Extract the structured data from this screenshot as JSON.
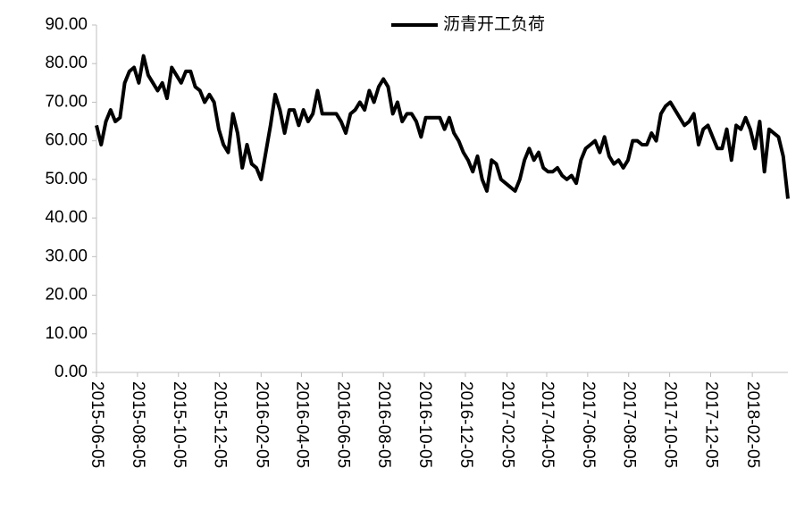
{
  "chart_data": {
    "type": "line",
    "series": [
      {
        "name": "沥青开工负荷",
        "color": "#000000",
        "x": [
          "2015-06-05",
          "2015-06-12",
          "2015-06-19",
          "2015-06-26",
          "2015-07-03",
          "2015-07-10",
          "2015-07-17",
          "2015-07-24",
          "2015-07-31",
          "2015-08-07",
          "2015-08-14",
          "2015-08-21",
          "2015-08-28",
          "2015-09-04",
          "2015-09-11",
          "2015-09-18",
          "2015-09-25",
          "2015-10-02",
          "2015-10-09",
          "2015-10-16",
          "2015-10-23",
          "2015-10-30",
          "2015-11-06",
          "2015-11-13",
          "2015-11-20",
          "2015-11-27",
          "2015-12-04",
          "2015-12-11",
          "2015-12-18",
          "2015-12-25",
          "2016-01-01",
          "2016-01-08",
          "2016-01-15",
          "2016-01-22",
          "2016-01-29",
          "2016-02-05",
          "2016-02-12",
          "2016-02-19",
          "2016-02-26",
          "2016-03-04",
          "2016-03-11",
          "2016-03-18",
          "2016-03-25",
          "2016-04-01",
          "2016-04-08",
          "2016-04-15",
          "2016-04-22",
          "2016-04-29",
          "2016-05-06",
          "2016-05-13",
          "2016-05-20",
          "2016-05-27",
          "2016-06-03",
          "2016-06-10",
          "2016-06-17",
          "2016-06-24",
          "2016-07-01",
          "2016-07-08",
          "2016-07-15",
          "2016-07-22",
          "2016-07-29",
          "2016-08-05",
          "2016-08-12",
          "2016-08-19",
          "2016-08-26",
          "2016-09-02",
          "2016-09-09",
          "2016-09-16",
          "2016-09-23",
          "2016-09-30",
          "2016-10-07",
          "2016-10-14",
          "2016-10-21",
          "2016-10-28",
          "2016-11-04",
          "2016-11-11",
          "2016-11-18",
          "2016-11-25",
          "2016-12-02",
          "2016-12-09",
          "2016-12-16",
          "2016-12-23",
          "2016-12-30",
          "2017-01-06",
          "2017-01-13",
          "2017-01-20",
          "2017-01-27",
          "2017-02-03",
          "2017-02-10",
          "2017-02-17",
          "2017-02-24",
          "2017-03-03",
          "2017-03-10",
          "2017-03-17",
          "2017-03-24",
          "2017-03-31",
          "2017-04-07",
          "2017-04-14",
          "2017-04-21",
          "2017-04-28",
          "2017-05-05",
          "2017-05-12",
          "2017-05-19",
          "2017-05-26",
          "2017-06-02",
          "2017-06-09",
          "2017-06-16",
          "2017-06-23",
          "2017-06-30",
          "2017-07-07",
          "2017-07-14",
          "2017-07-21",
          "2017-07-28",
          "2017-08-04",
          "2017-08-11",
          "2017-08-18",
          "2017-08-25",
          "2017-09-01",
          "2017-09-08",
          "2017-09-15",
          "2017-09-22",
          "2017-09-29",
          "2017-10-06",
          "2017-10-13",
          "2017-10-20",
          "2017-10-27",
          "2017-11-03",
          "2017-11-10",
          "2017-11-17",
          "2017-11-24",
          "2017-12-01",
          "2017-12-08",
          "2017-12-15",
          "2017-12-22",
          "2017-12-29",
          "2018-01-05",
          "2018-01-12",
          "2018-01-19",
          "2018-01-26",
          "2018-02-02",
          "2018-02-09",
          "2018-02-16",
          "2018-02-23",
          "2018-03-02",
          "2018-03-09",
          "2018-03-16",
          "2018-03-23",
          "2018-03-30"
        ],
        "values": [
          64,
          59,
          65,
          68,
          65,
          66,
          75,
          78,
          79,
          75,
          82,
          77,
          75,
          73,
          75,
          71,
          79,
          77,
          75,
          78,
          78,
          74,
          73,
          70,
          72,
          70,
          63,
          59,
          57,
          67,
          62,
          53,
          59,
          54,
          53,
          50,
          57,
          64,
          72,
          68,
          62,
          68,
          68,
          64,
          68,
          65,
          67,
          73,
          67,
          67,
          67,
          67,
          65,
          62,
          67,
          68,
          70,
          68,
          73,
          70,
          74,
          76,
          74,
          67,
          70,
          65,
          67,
          67,
          65,
          61,
          66,
          66,
          66,
          66,
          63,
          66,
          62,
          60,
          57,
          55,
          52,
          56,
          50,
          47,
          55,
          54,
          50,
          49,
          48,
          47,
          50,
          55,
          58,
          55,
          57,
          53,
          52,
          52,
          53,
          51,
          50,
          51,
          49,
          55,
          58,
          59,
          60,
          57,
          61,
          56,
          54,
          55,
          53,
          55,
          60,
          60,
          59,
          59,
          62,
          60,
          67,
          69,
          70,
          68,
          66,
          64,
          65,
          67,
          59,
          63,
          64,
          61,
          58,
          58,
          63,
          55,
          64,
          63,
          66,
          63,
          58,
          65,
          52,
          63,
          62,
          61,
          56,
          45
        ]
      }
    ],
    "xlim": [
      "2015-06-05",
      "2018-03-30"
    ],
    "xticks": [
      "2015-06-05",
      "2015-08-05",
      "2015-10-05",
      "2015-12-05",
      "2016-02-05",
      "2016-04-05",
      "2016-06-05",
      "2016-08-05",
      "2016-10-05",
      "2016-12-05",
      "2017-02-05",
      "2017-04-05",
      "2017-06-05",
      "2017-08-05",
      "2017-10-05",
      "2017-12-05",
      "2018-02-05"
    ],
    "ylim": [
      0,
      90
    ],
    "yticks": [
      {
        "value": 0,
        "label": "0.00"
      },
      {
        "value": 10,
        "label": "10.00"
      },
      {
        "value": 20,
        "label": "20.00"
      },
      {
        "value": 30,
        "label": "30.00"
      },
      {
        "value": 40,
        "label": "40.00"
      },
      {
        "value": 50,
        "label": "50.00"
      },
      {
        "value": 60,
        "label": "60.00"
      },
      {
        "value": 70,
        "label": "70.00"
      },
      {
        "value": 80,
        "label": "80.00"
      },
      {
        "value": 90,
        "label": "90.00"
      }
    ],
    "legend": "top"
  }
}
